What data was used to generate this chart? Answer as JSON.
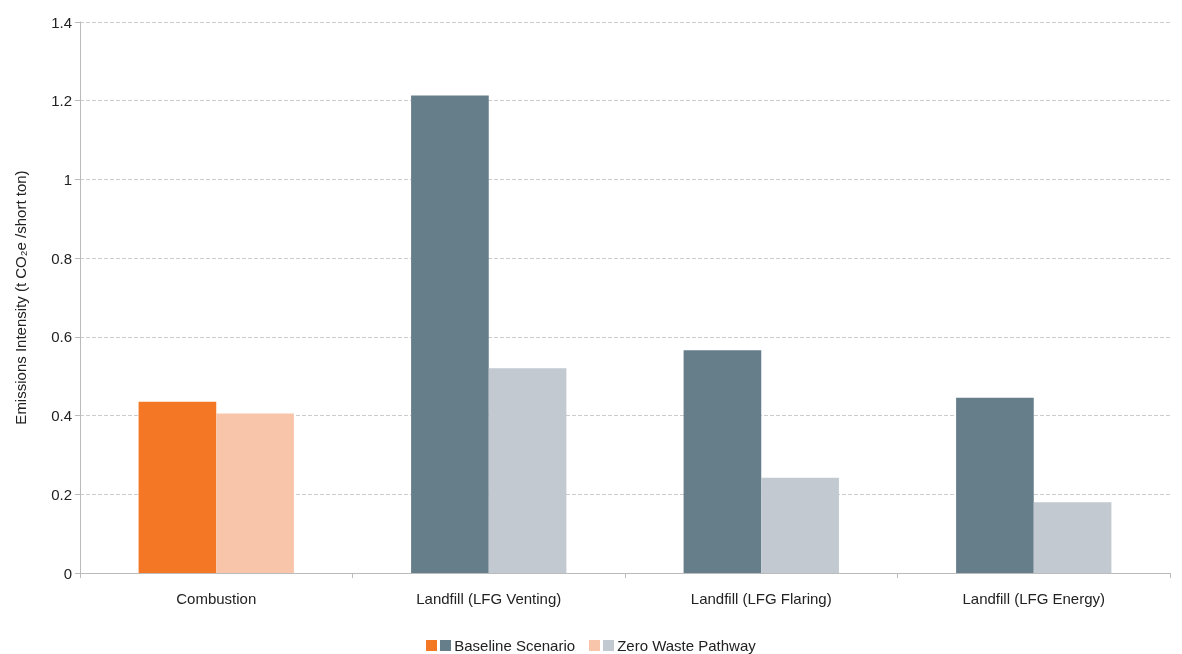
{
  "chart_data": {
    "type": "bar",
    "ylabel": "Emissions Intensity (t CO₂e /short ton)",
    "categories": [
      "Combustion",
      "Landfill (LFG Venting)",
      "Landfill (LFG Flaring)",
      "Landfill (LFG Energy)"
    ],
    "series": [
      {
        "name": "Baseline Scenario",
        "colors": [
          "#f47726",
          "#667e8a",
          "#667e8a",
          "#667e8a"
        ],
        "values": [
          0.435,
          1.213,
          0.566,
          0.445
        ]
      },
      {
        "name": "Zero Waste Pathway",
        "colors": [
          "#f8c5ab",
          "#c2c9d0",
          "#c2c9d0",
          "#c2c9d0"
        ],
        "values": [
          0.405,
          0.52,
          0.242,
          0.18
        ]
      }
    ],
    "ylim": [
      0,
      1.4
    ],
    "yticks": [
      0,
      0.2,
      0.4,
      0.6,
      0.8,
      1,
      1.2,
      1.4
    ],
    "grid": "y",
    "legend": "bottom"
  }
}
